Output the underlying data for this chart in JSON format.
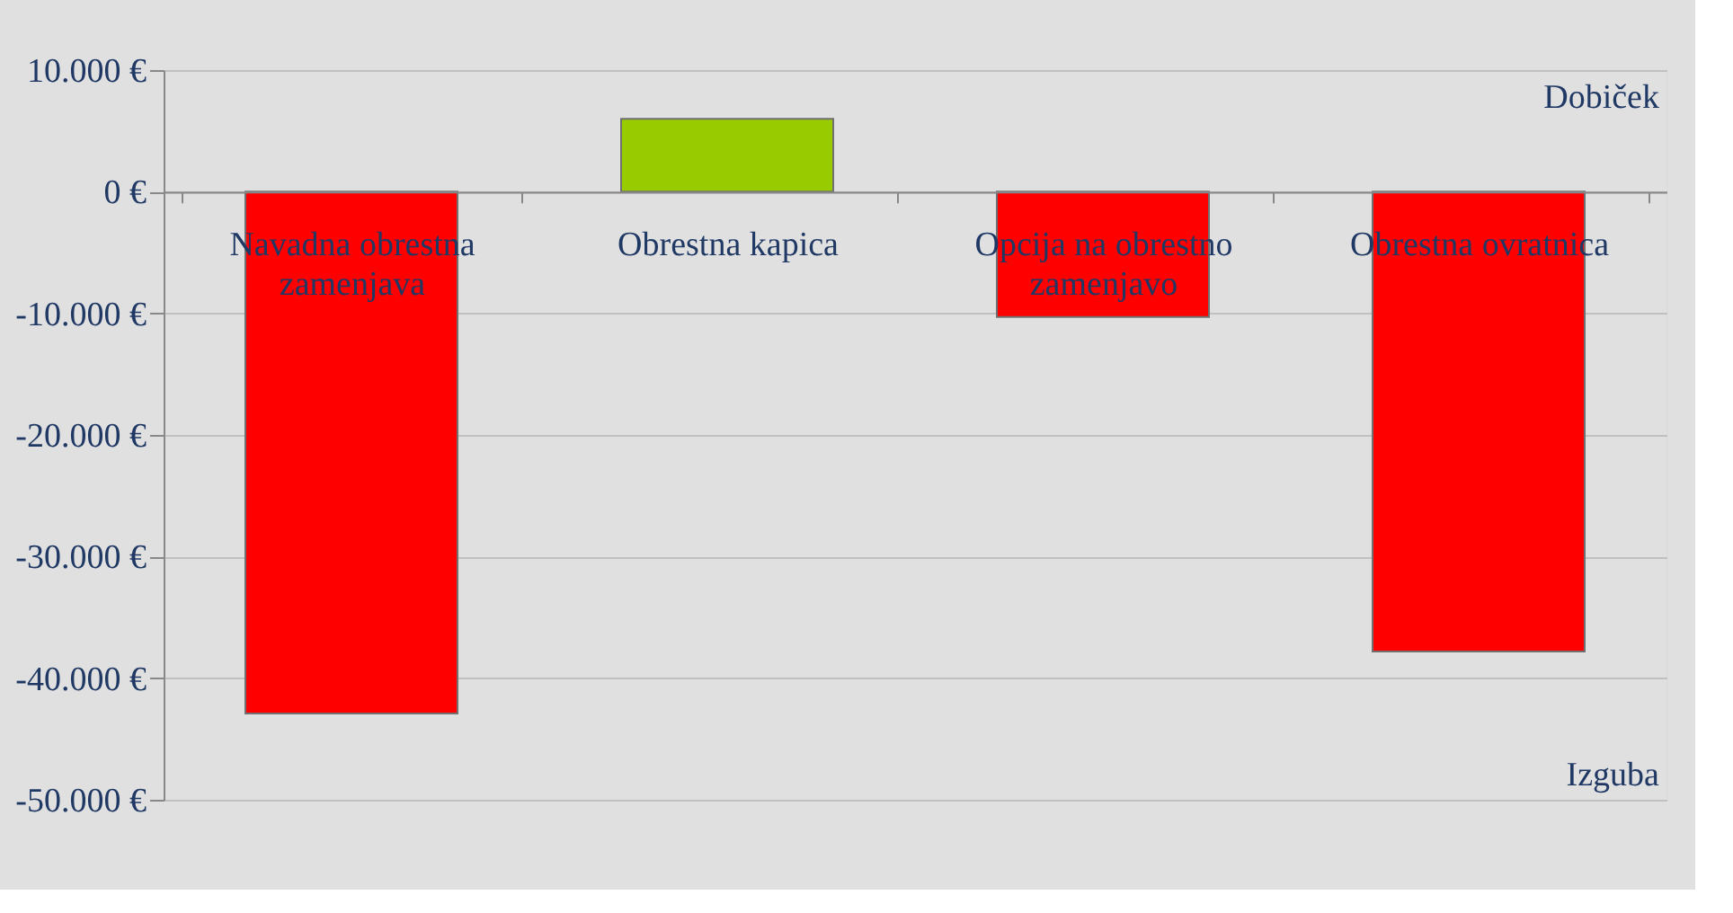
{
  "chart_data": {
    "type": "bar",
    "categories": [
      "Navadna obrestna zamenjava",
      "Obrestna kapica",
      "Opcija na obrestno zamenjavo",
      "Obrestna ovratnica"
    ],
    "values": [
      -42900,
      6000,
      -10300,
      -37800
    ],
    "colors": [
      "#ff0000",
      "#99cc00",
      "#ff0000",
      "#ff0000"
    ],
    "ylim": [
      -50000,
      10000
    ],
    "yticks": [
      {
        "value": -50000,
        "label": "-50.000 €"
      },
      {
        "value": -40000,
        "label": "-40.000 €"
      },
      {
        "value": -30000,
        "label": "-30.000 €"
      },
      {
        "value": -20000,
        "label": "-20.000 €"
      },
      {
        "value": -10000,
        "label": "-10.000 €"
      },
      {
        "value": 0,
        "label": "0 €"
      },
      {
        "value": 10000,
        "label": "10.000 €"
      }
    ],
    "grid": "y",
    "annotations": [
      "Dobiček",
      "Izguba"
    ]
  }
}
